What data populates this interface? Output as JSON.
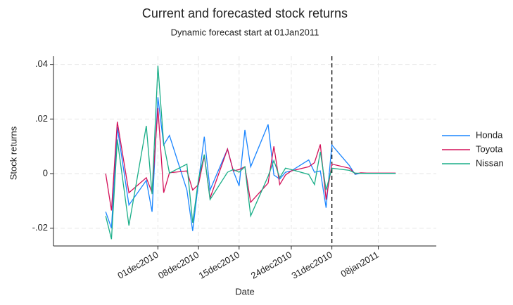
{
  "chart_data": {
    "type": "line",
    "title": "Current and forecasted stock returns",
    "subtitle": "Dynamic forecast start at 01Jan2011",
    "x_label": "Date",
    "y_label": "Stock returns",
    "x": [
      18588,
      18589,
      18590,
      18592,
      18595,
      18596,
      18597,
      18598,
      18599,
      18602,
      18603,
      18604,
      18605,
      18606,
      18609,
      18610,
      18611,
      18612,
      18613,
      18616,
      18617,
      18618,
      18619,
      18620,
      18623,
      18624,
      18625,
      18626,
      18627,
      18630,
      18631,
      18632,
      18633,
      18634,
      18637,
      18638
    ],
    "series": [
      {
        "name": "Honda",
        "color": "#1a85ff",
        "values": [
          -0.014,
          -0.02,
          0.017,
          -0.0115,
          -0.0025,
          -0.014,
          0.028,
          0.0105,
          0.014,
          -0.006,
          -0.021,
          -0.003,
          0.0135,
          -0.006,
          0.009,
          0.001,
          -0.0045,
          0.016,
          0.0025,
          0.018,
          -0.0005,
          -0.002,
          0.0005,
          0.001,
          0.005,
          0.0005,
          0.001,
          -0.0125,
          0.0105,
          0.003,
          -0.0003,
          0.0002,
          0.0001,
          0.0001,
          0.0001,
          0.0001
        ]
      },
      {
        "name": "Toyota",
        "color": "#d41159",
        "values": [
          0,
          -0.0135,
          0.019,
          -0.007,
          -0.0015,
          -0.007,
          0.024,
          -0.007,
          0.0003,
          0.001,
          -0.006,
          -0.004,
          0.0065,
          -0.009,
          0.009,
          0.001,
          0.0015,
          0.0025,
          -0.0105,
          -0.0035,
          0.01,
          -0.004,
          -0.0005,
          0.001,
          0.0025,
          0.004,
          0.0107,
          -0.0095,
          0.0035,
          0.002,
          0,
          0.0003,
          0.0002,
          0.0002,
          0.0002,
          0.0002
        ]
      },
      {
        "name": "Nissan",
        "color": "#1aae88",
        "values": [
          -0.0155,
          -0.024,
          0.0125,
          -0.019,
          0.0175,
          -0.0075,
          0.0395,
          0.011,
          0.0002,
          0.0035,
          -0.018,
          -0.002,
          0.007,
          -0.0095,
          0.0005,
          0.0015,
          0.0005,
          0.0025,
          -0.0155,
          -0.001,
          0.0048,
          -0.0015,
          0.002,
          0.0015,
          -0.0003,
          -0.004,
          0.008,
          -0.006,
          0.002,
          0.0012,
          0.0002,
          0.0001,
          0.0001,
          0.0001,
          0.0001,
          0.0001
        ]
      }
    ],
    "forecast_start": 18627,
    "xlim": [
      18579,
      18645
    ],
    "ylim": [
      -0.0265,
      0.043
    ],
    "xticks": [
      {
        "value": 18597,
        "label": "01dec2010"
      },
      {
        "value": 18604,
        "label": "08dec2010"
      },
      {
        "value": 18611,
        "label": "15dec2010"
      },
      {
        "value": 18620,
        "label": "24dec2010"
      },
      {
        "value": 18627,
        "label": "31dec2010"
      },
      {
        "value": 18635,
        "label": "08jan2011"
      }
    ],
    "yticks": [
      {
        "value": -0.02,
        "label": "-.02"
      },
      0,
      {
        "value": 0.02,
        "label": ".02"
      },
      {
        "value": 0.04,
        "label": ".04"
      }
    ],
    "grid": true,
    "legend": "right"
  }
}
